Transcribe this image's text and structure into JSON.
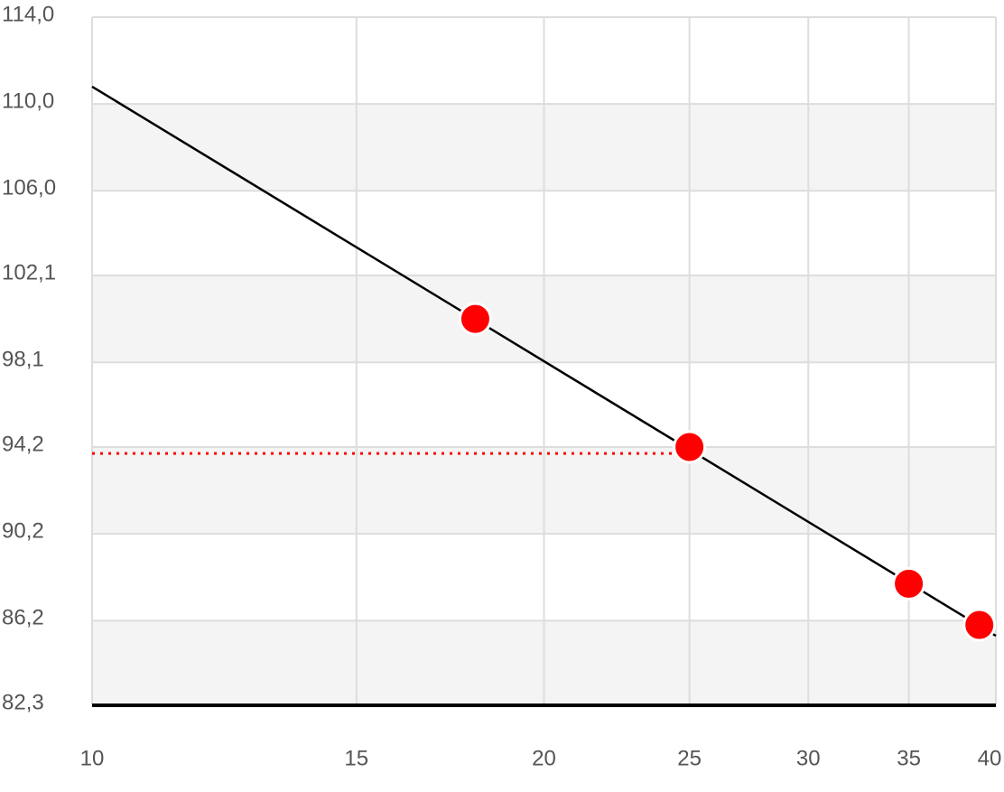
{
  "chart_data": {
    "type": "line",
    "xlog": true,
    "xlim": [
      10,
      40
    ],
    "xticks": [
      10,
      15,
      20,
      25,
      30,
      35,
      40
    ],
    "ylim": [
      82.3,
      114.0
    ],
    "yticks": [
      {
        "value": 82.3,
        "label": "82,3"
      },
      {
        "value": 86.2,
        "label": "86,2"
      },
      {
        "value": 90.2,
        "label": "90,2"
      },
      {
        "value": 94.2,
        "label": "94,2"
      },
      {
        "value": 98.1,
        "label": "98,1"
      },
      {
        "value": 102.1,
        "label": "102,1"
      },
      {
        "value": 106.0,
        "label": "106,0"
      },
      {
        "value": 110.0,
        "label": "110,0"
      },
      {
        "value": 114.0,
        "label": "114,0"
      }
    ],
    "grid": true,
    "band_color": "#f4f4f4",
    "series": [
      {
        "style": "line",
        "color": "#000000",
        "x": [
          10,
          40
        ],
        "values": [
          110.8,
          85.5
        ]
      },
      {
        "style": "dotted",
        "color": "#ff0000",
        "x": [
          10,
          25
        ],
        "values": [
          93.9,
          93.9
        ]
      },
      {
        "style": "markers",
        "color": "#ff0000",
        "x": [
          18,
          25,
          35,
          39
        ],
        "values": [
          100.1,
          94.2,
          87.9,
          86.0
        ]
      }
    ]
  }
}
